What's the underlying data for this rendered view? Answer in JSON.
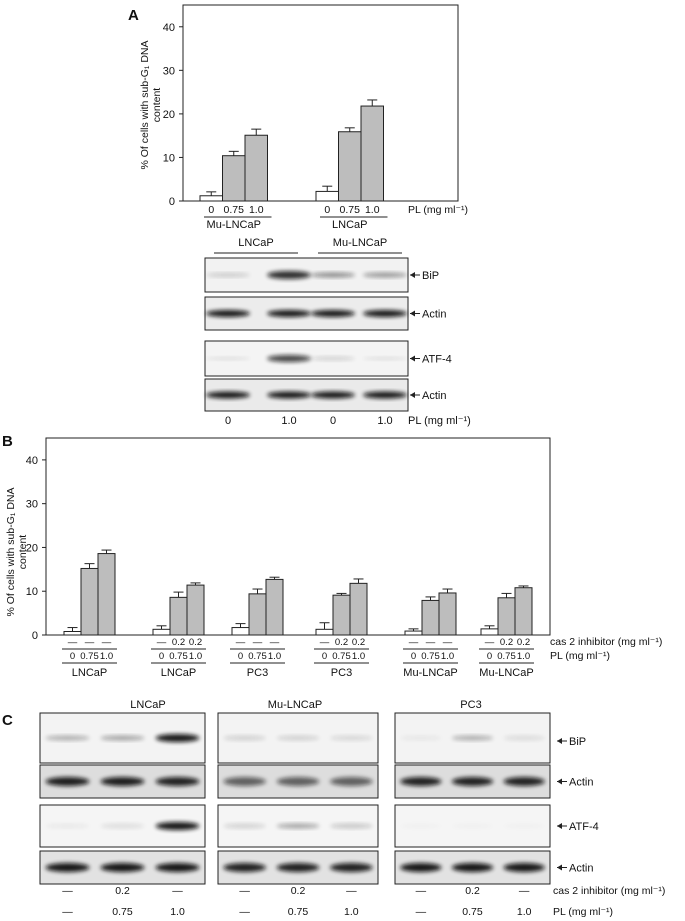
{
  "panelA": {
    "letter": "A",
    "chart_data": {
      "type": "bar",
      "ylabel_line1": "% Of cells with sub-G₁ DNA",
      "ylabel_line2": "content",
      "ylim": [
        0,
        45
      ],
      "yticks": [
        "0",
        "10",
        "20",
        "30",
        "40"
      ],
      "groups": [
        {
          "name": "Mu-LNCaP",
          "doses": [
            "0",
            "0.75",
            "1.0"
          ],
          "values": [
            1.2,
            10.4,
            15.1
          ],
          "errors": [
            0.9,
            1.0,
            1.4
          ]
        },
        {
          "name": "LNCaP",
          "doses": [
            "0",
            "0.75",
            "1.0"
          ],
          "values": [
            2.2,
            15.9,
            21.8
          ],
          "errors": [
            1.2,
            0.9,
            1.4
          ]
        }
      ],
      "xunit": "PL (mg ml⁻¹)"
    },
    "blot": {
      "headers": [
        "LNCaP",
        "Mu-LNCaP"
      ],
      "labels": [
        "BiP",
        "Actin",
        "ATF-4",
        "Actin"
      ],
      "doses": [
        "0",
        "1.0",
        "0",
        "1.0"
      ],
      "dose_unit": "PL  (mg ml⁻¹)"
    }
  },
  "panelB": {
    "letter": "B",
    "chart_data": {
      "type": "bar",
      "ylabel_line1": "% Of cells with sub-G₁ DNA",
      "ylabel_line2": "content",
      "ylim": [
        0,
        45
      ],
      "yticks": [
        "0",
        "10",
        "20",
        "30",
        "40"
      ],
      "groups": [
        {
          "name": "LNCaP",
          "inhibitor": [
            "—",
            "—",
            "—"
          ],
          "doses": [
            "0",
            "0.75",
            "1.0"
          ],
          "values": [
            0.8,
            15.2,
            18.6
          ],
          "errors": [
            0.9,
            1.1,
            0.8
          ]
        },
        {
          "name": "LNCaP",
          "inhibitor": [
            "—",
            "0.2",
            "0.2"
          ],
          "doses": [
            "0",
            "0.75",
            "1.0"
          ],
          "values": [
            1.3,
            8.6,
            11.4
          ],
          "errors": [
            0.8,
            1.2,
            0.5
          ]
        },
        {
          "name": "PC3",
          "inhibitor": [
            "—",
            "—",
            "—"
          ],
          "doses": [
            "0",
            "0.75",
            "1.0"
          ],
          "values": [
            1.7,
            9.4,
            12.7
          ],
          "errors": [
            0.9,
            1.1,
            0.5
          ]
        },
        {
          "name": "PC3",
          "inhibitor": [
            "—",
            "0.2",
            "0.2"
          ],
          "doses": [
            "0",
            "0.75",
            "1.0"
          ],
          "values": [
            1.3,
            9.1,
            11.8
          ],
          "errors": [
            1.5,
            0.4,
            1.0
          ]
        },
        {
          "name": "Mu-LNCaP",
          "inhibitor": [
            "—",
            "—",
            "—"
          ],
          "doses": [
            "0",
            "0.75",
            "1.0"
          ],
          "values": [
            0.9,
            7.9,
            9.6
          ],
          "errors": [
            0.5,
            0.8,
            0.9
          ]
        },
        {
          "name": "Mu-LNCaP",
          "inhibitor": [
            "—",
            "0.2",
            "0.2"
          ],
          "doses": [
            "0",
            "0.75",
            "1.0"
          ],
          "values": [
            1.4,
            8.5,
            10.8
          ],
          "errors": [
            0.7,
            1.0,
            0.4
          ]
        }
      ],
      "inhibitor_unit": "cas 2 inhibitor (mg ml⁻¹)",
      "dose_unit": "PL (mg ml⁻¹)"
    }
  },
  "panelC": {
    "letter": "C",
    "headers": [
      "LNCaP",
      "Mu-LNCaP",
      "PC3"
    ],
    "labels": [
      "BiP",
      "Actin",
      "ATF-4",
      "Actin"
    ],
    "inhibitor": [
      "—",
      "0.2",
      "—"
    ],
    "doses": [
      "—",
      "0.75",
      "1.0"
    ],
    "inhibitor_unit": "cas 2 inhibitor (mg ml⁻¹)",
    "dose_unit": "PL (mg ml⁻¹)"
  }
}
